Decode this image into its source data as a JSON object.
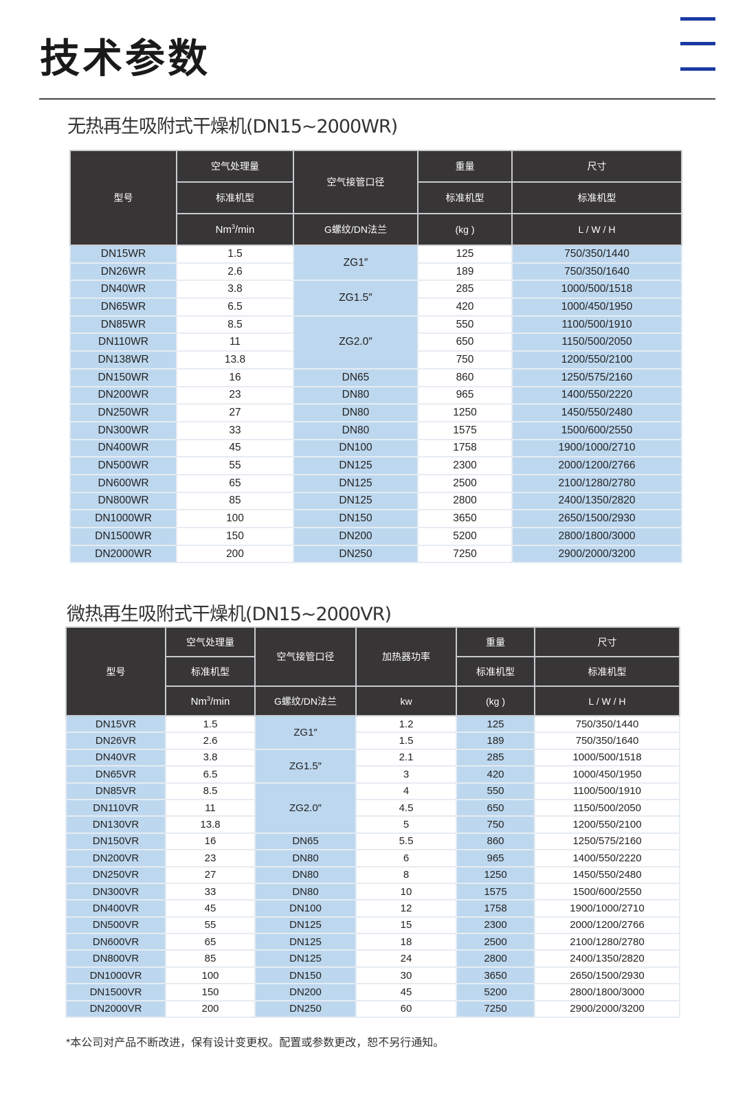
{
  "header": {
    "title": "技术参数",
    "menu_icon": "hamburger-menu-icon",
    "accent": "#1a3aa3"
  },
  "colors": {
    "header_bg": "#383536",
    "highlight": "#bdd7ee"
  },
  "table1": {
    "title": "无热再生吸附式干燥机(DN15~2000WR)",
    "headers": {
      "model": "型号",
      "flow": "空气处理量",
      "flow_sub": "标准机型",
      "flow_unit_base": "Nm",
      "flow_unit_sup": "3",
      "flow_unit_tail": "/min",
      "pipe": "空气接管口径",
      "pipe_unit": "G螺纹/DN法兰",
      "weight": "重量",
      "weight_sub": "标准机型",
      "weight_unit": "(kg )",
      "size": "尺寸",
      "size_sub": "标准机型",
      "size_unit": "L / W / H"
    },
    "rows": [
      {
        "model": "DN15WR",
        "flow": "1.5",
        "pipe": "ZG1″",
        "pipe_span": 2,
        "weight": "125",
        "size": "750/350/1440"
      },
      {
        "model": "DN26WR",
        "flow": "2.6",
        "weight": "189",
        "size": "750/350/1640"
      },
      {
        "model": "DN40WR",
        "flow": "3.8",
        "pipe": "ZG1.5″",
        "pipe_span": 2,
        "weight": "285",
        "size": "1000/500/1518"
      },
      {
        "model": "DN65WR",
        "flow": "6.5",
        "weight": "420",
        "size": "1000/450/1950"
      },
      {
        "model": "DN85WR",
        "flow": "8.5",
        "pipe": "ZG2.0″",
        "pipe_span": 3,
        "weight": "550",
        "size": "1100/500/1910"
      },
      {
        "model": "DN110WR",
        "flow": "11",
        "weight": "650",
        "size": "1150/500/2050"
      },
      {
        "model": "DN138WR",
        "flow": "13.8",
        "weight": "750",
        "size": "1200/550/2100"
      },
      {
        "model": "DN150WR",
        "flow": "16",
        "pipe": "DN65",
        "pipe_span": 1,
        "weight": "860",
        "size": "1250/575/2160"
      },
      {
        "model": "DN200WR",
        "flow": "23",
        "pipe": "DN80",
        "pipe_span": 1,
        "weight": "965",
        "size": "1400/550/2220"
      },
      {
        "model": "DN250WR",
        "flow": "27",
        "pipe": "DN80",
        "pipe_span": 1,
        "weight": "1250",
        "size": "1450/550/2480"
      },
      {
        "model": "DN300WR",
        "flow": "33",
        "pipe": "DN80",
        "pipe_span": 1,
        "weight": "1575",
        "size": "1500/600/2550"
      },
      {
        "model": "DN400WR",
        "flow": "45",
        "pipe": "DN100",
        "pipe_span": 1,
        "weight": "1758",
        "size": "1900/1000/2710"
      },
      {
        "model": "DN500WR",
        "flow": "55",
        "pipe": "DN125",
        "pipe_span": 1,
        "weight": "2300",
        "size": "2000/1200/2766"
      },
      {
        "model": "DN600WR",
        "flow": "65",
        "pipe": "DN125",
        "pipe_span": 1,
        "weight": "2500",
        "size": "2100/1280/2780"
      },
      {
        "model": "DN800WR",
        "flow": "85",
        "pipe": "DN125",
        "pipe_span": 1,
        "weight": "2800",
        "size": "2400/1350/2820"
      },
      {
        "model": "DN1000WR",
        "flow": "100",
        "pipe": "DN150",
        "pipe_span": 1,
        "weight": "3650",
        "size": "2650/1500/2930"
      },
      {
        "model": "DN1500WR",
        "flow": "150",
        "pipe": "DN200",
        "pipe_span": 1,
        "weight": "5200",
        "size": "2800/1800/3000"
      },
      {
        "model": "DN2000WR",
        "flow": "200",
        "pipe": "DN250",
        "pipe_span": 1,
        "weight": "7250",
        "size": "2900/2000/3200"
      }
    ]
  },
  "table2": {
    "title": "微热再生吸附式干燥机(DN15~2000VR)",
    "headers": {
      "model": "型号",
      "flow": "空气处理量",
      "flow_sub": "标准机型",
      "flow_unit_base": "Nm",
      "flow_unit_sup": "3",
      "flow_unit_tail": "/min",
      "pipe": "空气接管口径",
      "pipe_unit": "G螺纹/DN法兰",
      "heater": "加热器功率",
      "heater_unit": "kw",
      "weight": "重量",
      "weight_sub": "标准机型",
      "weight_unit": "(kg )",
      "size": "尺寸",
      "size_sub": "标准机型",
      "size_unit": "L / W / H"
    },
    "rows": [
      {
        "model": "DN15VR",
        "flow": "1.5",
        "pipe": "ZG1″",
        "pipe_span": 2,
        "heater": "1.2",
        "weight": "125",
        "size": "750/350/1440"
      },
      {
        "model": "DN26VR",
        "flow": "2.6",
        "heater": "1.5",
        "weight": "189",
        "size": "750/350/1640"
      },
      {
        "model": "DN40VR",
        "flow": "3.8",
        "pipe": "ZG1.5″",
        "pipe_span": 2,
        "heater": "2.1",
        "weight": "285",
        "size": "1000/500/1518"
      },
      {
        "model": "DN65VR",
        "flow": "6.5",
        "heater": "3",
        "weight": "420",
        "size": "1000/450/1950"
      },
      {
        "model": "DN85VR",
        "flow": "8.5",
        "pipe": "ZG2.0″",
        "pipe_span": 3,
        "heater": "4",
        "weight": "550",
        "size": "1100/500/1910"
      },
      {
        "model": "DN110VR",
        "flow": "11",
        "heater": "4.5",
        "weight": "650",
        "size": "1150/500/2050"
      },
      {
        "model": "DN130VR",
        "flow": "13.8",
        "heater": "5",
        "weight": "750",
        "size": "1200/550/2100"
      },
      {
        "model": "DN150VR",
        "flow": "16",
        "pipe": "DN65",
        "pipe_span": 1,
        "heater": "5.5",
        "weight": "860",
        "size": "1250/575/2160"
      },
      {
        "model": "DN200VR",
        "flow": "23",
        "pipe": "DN80",
        "pipe_span": 1,
        "heater": "6",
        "weight": "965",
        "size": "1400/550/2220"
      },
      {
        "model": "DN250VR",
        "flow": "27",
        "pipe": "DN80",
        "pipe_span": 1,
        "heater": "8",
        "weight": "1250",
        "size": "1450/550/2480"
      },
      {
        "model": "DN300VR",
        "flow": "33",
        "pipe": "DN80",
        "pipe_span": 1,
        "heater": "10",
        "weight": "1575",
        "size": "1500/600/2550"
      },
      {
        "model": "DN400VR",
        "flow": "45",
        "pipe": "DN100",
        "pipe_span": 1,
        "heater": "12",
        "weight": "1758",
        "size": "1900/1000/2710"
      },
      {
        "model": "DN500VR",
        "flow": "55",
        "pipe": "DN125",
        "pipe_span": 1,
        "heater": "15",
        "weight": "2300",
        "size": "2000/1200/2766"
      },
      {
        "model": "DN600VR",
        "flow": "65",
        "pipe": "DN125",
        "pipe_span": 1,
        "heater": "18",
        "weight": "2500",
        "size": "2100/1280/2780"
      },
      {
        "model": "DN800VR",
        "flow": "85",
        "pipe": "DN125",
        "pipe_span": 1,
        "heater": "24",
        "weight": "2800",
        "size": "2400/1350/2820"
      },
      {
        "model": "DN1000VR",
        "flow": "100",
        "pipe": "DN150",
        "pipe_span": 1,
        "heater": "30",
        "weight": "3650",
        "size": "2650/1500/2930"
      },
      {
        "model": "DN1500VR",
        "flow": "150",
        "pipe": "DN200",
        "pipe_span": 1,
        "heater": "45",
        "weight": "5200",
        "size": "2800/1800/3000"
      },
      {
        "model": "DN2000VR",
        "flow": "200",
        "pipe": "DN250",
        "pipe_span": 1,
        "heater": "60",
        "weight": "7250",
        "size": "2900/2000/3200"
      }
    ]
  },
  "footnote": "*本公司对产品不断改进，保有设计变更权。配置或参数更改，恕不另行通知。"
}
